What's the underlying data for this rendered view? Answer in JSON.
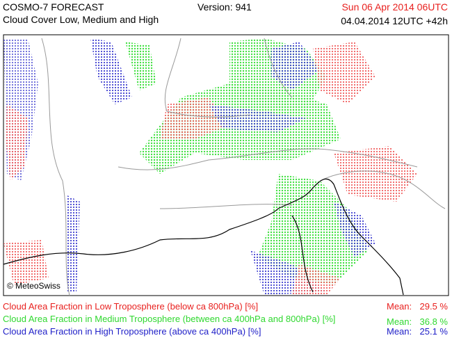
{
  "header": {
    "title": "COSMO-7 FORECAST",
    "subtitle": "Cloud Cover Low, Medium and High",
    "version": "Version: 941",
    "valid_time": "Sun 06 Apr 2014 06UTC",
    "run_time": "04.04.2014 12UTC +42h"
  },
  "map": {
    "credit": "© MeteoSwiss"
  },
  "legend": [
    {
      "label": "Cloud Area Fraction in Low Troposphere (below ca 800hPa) [%]",
      "mean_label": "Mean:",
      "mean": "29.5 %"
    },
    {
      "label": "Cloud Area Fraction in Medium Troposphere (between ca 400hPa and 800hPa) [%]",
      "mean_label": "Mean:",
      "mean": "36.8 %"
    },
    {
      "label": "Cloud Area Fraction in High Troposphere (above ca 400hPa) [%]",
      "mean_label": "Mean:",
      "mean": "25.1 %"
    }
  ]
}
